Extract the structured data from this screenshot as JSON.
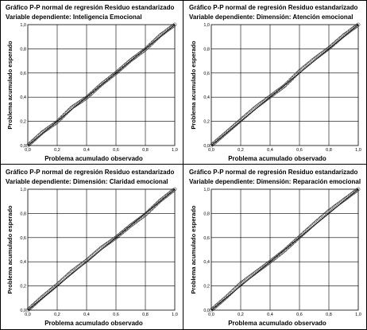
{
  "chart_data": [
    {
      "type": "scatter",
      "title": "Gráfico P-P normal de regresión Residuo estandarizado",
      "subtitle": "Variable dependiente: Inteligencia Emocional",
      "xlabel": "Problema acumulado observado",
      "ylabel": "Problema acumulado esperado",
      "xlim": [
        0,
        1
      ],
      "ylim": [
        0,
        1
      ],
      "xticks": [
        "0,0",
        "0,2",
        "0,4",
        "0,6",
        "0,8",
        "1,0"
      ],
      "yticks": [
        "0,0",
        "0,2",
        "0,4",
        "0,6",
        "0,8",
        "1,0"
      ],
      "grid": true,
      "reference_line": [
        [
          0,
          0
        ],
        [
          1,
          1
        ]
      ],
      "deviation_points": [
        [
          0,
          0
        ],
        [
          0.1,
          0.01
        ],
        [
          0.2,
          -0.005
        ],
        [
          0.3,
          0.015
        ],
        [
          0.4,
          -0.005
        ],
        [
          0.5,
          0.005
        ],
        [
          0.6,
          0.0
        ],
        [
          0.7,
          0.005
        ],
        [
          0.8,
          -0.005
        ],
        [
          0.9,
          0.01
        ],
        [
          1,
          0
        ]
      ]
    },
    {
      "type": "scatter",
      "title": "Gráfico P-P normal de regresión Residuo estandarizado",
      "subtitle": "Variable dependiente: Dimensión: Atención emocional",
      "xlabel": "Problema acumulado observado",
      "ylabel": "Problema acumulado esperado",
      "xlim": [
        0,
        1
      ],
      "ylim": [
        0,
        1
      ],
      "xticks": [
        "0,0",
        "0,2",
        "0,4",
        "0,6",
        "0,8",
        "1,0"
      ],
      "yticks": [
        "0,0",
        "0,2",
        "0,4",
        "0,6",
        "0,8",
        "1,0"
      ],
      "grid": true,
      "reference_line": [
        [
          0,
          0
        ],
        [
          1,
          1
        ]
      ],
      "deviation_points": [
        [
          0,
          0
        ],
        [
          0.1,
          0.005
        ],
        [
          0.2,
          0.01
        ],
        [
          0.3,
          0.015
        ],
        [
          0.4,
          0.005
        ],
        [
          0.5,
          -0.005
        ],
        [
          0.6,
          0.015
        ],
        [
          0.7,
          0.015
        ],
        [
          0.8,
          0.005
        ],
        [
          0.9,
          0.01
        ],
        [
          1,
          0
        ]
      ]
    },
    {
      "type": "scatter",
      "title": "Gráfico P-P normal de regresión Residuo estandarizado",
      "subtitle": "Variable dependiente: Dimensión: Claridad emocional",
      "xlabel": "Problema acumulado observado",
      "ylabel": "Problema acumulado esperado",
      "xlim": [
        0,
        1
      ],
      "ylim": [
        0,
        1
      ],
      "xticks": [
        "0,0",
        "0,2",
        "0,4",
        "0,6",
        "0,8",
        "1,0"
      ],
      "yticks": [
        "0,0",
        "0,2",
        "0,4",
        "0,6",
        "0,8",
        "1,0"
      ],
      "grid": true,
      "reference_line": [
        [
          0,
          0
        ],
        [
          1,
          1
        ]
      ],
      "deviation_points": [
        [
          0,
          0
        ],
        [
          0.1,
          0.01
        ],
        [
          0.2,
          0.01
        ],
        [
          0.3,
          0.02
        ],
        [
          0.4,
          0.01
        ],
        [
          0.5,
          0.015
        ],
        [
          0.6,
          0.0
        ],
        [
          0.7,
          0.0
        ],
        [
          0.8,
          -0.01
        ],
        [
          0.9,
          0.005
        ],
        [
          1,
          0
        ]
      ]
    },
    {
      "type": "scatter",
      "title": "Gráfico P-P normal de regresión Residuo estandarizado",
      "subtitle": "Variable dependiente: Dimensión: Reparación emocional",
      "xlabel": "Problema acumulado observado",
      "ylabel": "Problema acumulado esperado",
      "xlim": [
        0,
        1
      ],
      "ylim": [
        0,
        1
      ],
      "xticks": [
        "0,0",
        "0,2",
        "0,4",
        "0,6",
        "0,8",
        "1,0"
      ],
      "yticks": [
        "0,0",
        "0,2",
        "0,4",
        "0,6",
        "0,8",
        "1,0"
      ],
      "grid": true,
      "reference_line": [
        [
          0,
          0
        ],
        [
          1,
          1
        ]
      ],
      "deviation_points": [
        [
          0,
          0
        ],
        [
          0.1,
          0.005
        ],
        [
          0.2,
          0.02
        ],
        [
          0.3,
          0.01
        ],
        [
          0.4,
          0.0
        ],
        [
          0.5,
          -0.005
        ],
        [
          0.6,
          0.005
        ],
        [
          0.7,
          0.015
        ],
        [
          0.8,
          0.02
        ],
        [
          0.9,
          0.01
        ],
        [
          1,
          0
        ]
      ]
    }
  ]
}
